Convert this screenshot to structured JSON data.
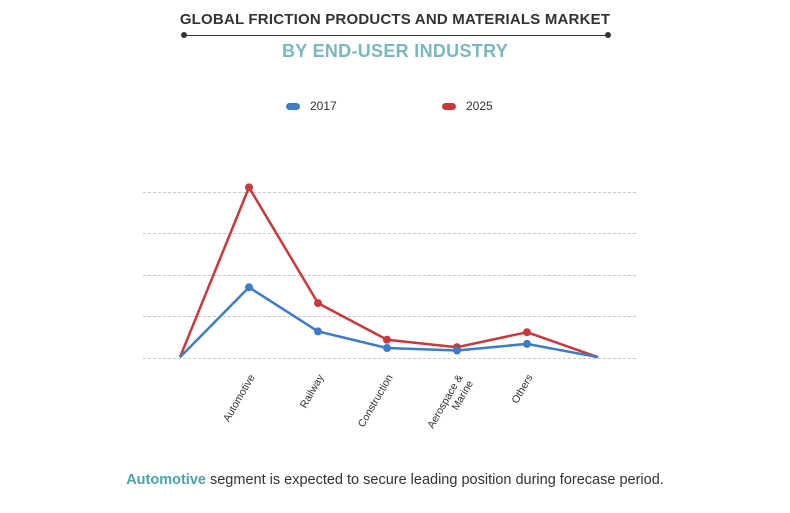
{
  "header": {
    "title": "GLOBAL FRICTION PRODUCTS AND MATERIALS MARKET",
    "subtitle": "BY END-USER INDUSTRY"
  },
  "caption": {
    "highlight": "Automotive",
    "rest": " segment is expected to secure leading position during forecase period."
  },
  "colors": {
    "series_2017": "#3d7cc9",
    "series_2025": "#c9393b",
    "subtitle": "#79b8bc",
    "caption_highlight": "#4aa3a9"
  },
  "chart_data": {
    "type": "line",
    "categories": [
      "",
      "Automotive",
      "Railway",
      "Construction",
      "Aerospace & Marine",
      "Others",
      ""
    ],
    "series": [
      {
        "name": "2017",
        "values": [
          0.1,
          8.5,
          3.2,
          1.2,
          0.9,
          1.7,
          0.1
        ],
        "markers": [
          false,
          true,
          true,
          true,
          true,
          true,
          false
        ]
      },
      {
        "name": "2025",
        "values": [
          0.1,
          20.5,
          6.6,
          2.2,
          1.3,
          3.1,
          0.1
        ],
        "markers": [
          false,
          true,
          true,
          true,
          true,
          true,
          false
        ]
      }
    ],
    "tick_labels": [
      "Automotive",
      "Railway",
      "Construction",
      [
        "Aerospace &",
        "Marine"
      ],
      "Others"
    ],
    "ylim": [
      0,
      25
    ],
    "grid": true,
    "legend": "top-center"
  }
}
